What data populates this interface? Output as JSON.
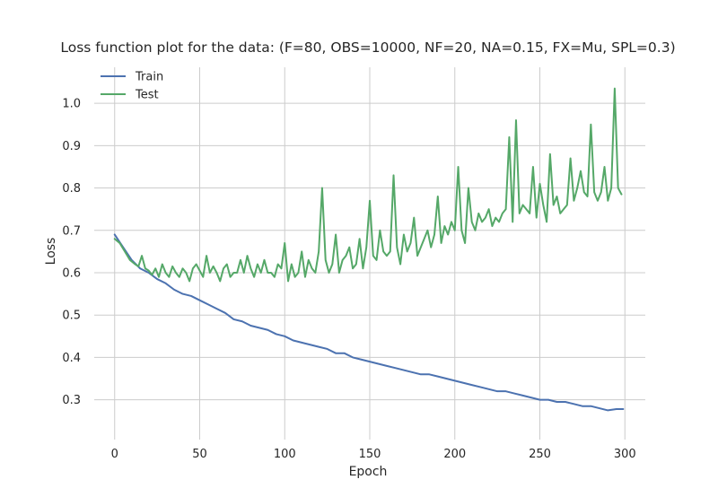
{
  "chart_data": {
    "type": "line",
    "title": "Loss function plot for the data: (F=80, OBS=10000, NF=20, NA=0.15, FX=Mu, SPL=0.3)",
    "xlabel": "Epoch",
    "ylabel": "Loss",
    "xlim": [
      -12,
      312
    ],
    "ylim": [
      0.206,
      1.085
    ],
    "xticks": [
      0,
      50,
      100,
      150,
      200,
      250,
      300
    ],
    "yticks": [
      0.3,
      0.4,
      0.5,
      0.6,
      0.7,
      0.8,
      0.9,
      1.0
    ],
    "xtick_labels": [
      "0",
      "50",
      "100",
      "150",
      "200",
      "250",
      "300"
    ],
    "ytick_labels": [
      "0.3",
      "0.4",
      "0.5",
      "0.6",
      "0.7",
      "0.8",
      "0.9",
      "1.0"
    ],
    "grid": true,
    "legend_position": "upper-left",
    "series": [
      {
        "name": "Train",
        "color": "#4c72b0",
        "x": [
          0,
          5,
          10,
          15,
          20,
          25,
          30,
          35,
          40,
          45,
          50,
          55,
          60,
          65,
          70,
          75,
          80,
          85,
          90,
          95,
          100,
          105,
          110,
          115,
          120,
          125,
          130,
          135,
          140,
          145,
          150,
          155,
          160,
          165,
          170,
          175,
          180,
          185,
          190,
          195,
          200,
          205,
          210,
          215,
          220,
          225,
          230,
          235,
          240,
          245,
          250,
          255,
          260,
          265,
          270,
          275,
          280,
          285,
          290,
          295,
          299
        ],
        "values": [
          0.69,
          0.66,
          0.63,
          0.61,
          0.6,
          0.585,
          0.575,
          0.56,
          0.55,
          0.545,
          0.535,
          0.525,
          0.515,
          0.505,
          0.49,
          0.485,
          0.475,
          0.47,
          0.465,
          0.455,
          0.45,
          0.44,
          0.435,
          0.43,
          0.425,
          0.42,
          0.41,
          0.41,
          0.4,
          0.395,
          0.39,
          0.385,
          0.38,
          0.375,
          0.37,
          0.365,
          0.36,
          0.36,
          0.355,
          0.35,
          0.345,
          0.34,
          0.335,
          0.33,
          0.325,
          0.32,
          0.32,
          0.315,
          0.31,
          0.305,
          0.3,
          0.3,
          0.295,
          0.295,
          0.29,
          0.285,
          0.285,
          0.28,
          0.275,
          0.278,
          0.278
        ]
      },
      {
        "name": "Test",
        "color": "#55a868",
        "x": [
          0,
          3,
          6,
          9,
          12,
          14,
          16,
          18,
          20,
          22,
          24,
          26,
          28,
          30,
          32,
          34,
          36,
          38,
          40,
          42,
          44,
          46,
          48,
          50,
          52,
          54,
          56,
          58,
          60,
          62,
          64,
          66,
          68,
          70,
          72,
          74,
          76,
          78,
          80,
          82,
          84,
          86,
          88,
          90,
          92,
          94,
          96,
          98,
          100,
          102,
          104,
          106,
          108,
          110,
          112,
          114,
          116,
          118,
          120,
          122,
          124,
          126,
          128,
          130,
          132,
          134,
          136,
          138,
          140,
          142,
          144,
          146,
          148,
          150,
          152,
          154,
          156,
          158,
          160,
          162,
          164,
          166,
          168,
          170,
          172,
          174,
          176,
          178,
          180,
          182,
          184,
          186,
          188,
          190,
          192,
          194,
          196,
          198,
          200,
          202,
          204,
          206,
          208,
          210,
          212,
          214,
          216,
          218,
          220,
          222,
          224,
          226,
          228,
          230,
          232,
          234,
          236,
          238,
          240,
          242,
          244,
          246,
          248,
          250,
          252,
          254,
          256,
          258,
          260,
          262,
          264,
          266,
          268,
          270,
          272,
          274,
          276,
          278,
          280,
          282,
          284,
          286,
          288,
          290,
          292,
          294,
          296,
          298
        ],
        "values": [
          0.68,
          0.67,
          0.65,
          0.63,
          0.62,
          0.615,
          0.64,
          0.61,
          0.605,
          0.595,
          0.61,
          0.59,
          0.62,
          0.6,
          0.59,
          0.615,
          0.6,
          0.59,
          0.61,
          0.6,
          0.58,
          0.61,
          0.62,
          0.605,
          0.59,
          0.64,
          0.6,
          0.615,
          0.6,
          0.58,
          0.61,
          0.62,
          0.59,
          0.6,
          0.6,
          0.63,
          0.6,
          0.64,
          0.61,
          0.59,
          0.62,
          0.6,
          0.63,
          0.6,
          0.6,
          0.59,
          0.62,
          0.61,
          0.67,
          0.58,
          0.62,
          0.59,
          0.6,
          0.65,
          0.59,
          0.63,
          0.61,
          0.6,
          0.65,
          0.8,
          0.63,
          0.6,
          0.62,
          0.69,
          0.6,
          0.63,
          0.64,
          0.66,
          0.61,
          0.62,
          0.68,
          0.61,
          0.66,
          0.77,
          0.64,
          0.63,
          0.7,
          0.65,
          0.64,
          0.65,
          0.83,
          0.66,
          0.62,
          0.69,
          0.65,
          0.67,
          0.73,
          0.64,
          0.66,
          0.68,
          0.7,
          0.66,
          0.69,
          0.78,
          0.67,
          0.71,
          0.69,
          0.72,
          0.7,
          0.85,
          0.7,
          0.67,
          0.8,
          0.72,
          0.7,
          0.74,
          0.72,
          0.73,
          0.75,
          0.71,
          0.73,
          0.72,
          0.74,
          0.75,
          0.92,
          0.72,
          0.96,
          0.74,
          0.76,
          0.75,
          0.74,
          0.85,
          0.73,
          0.81,
          0.76,
          0.72,
          0.88,
          0.76,
          0.78,
          0.74,
          0.75,
          0.76,
          0.87,
          0.77,
          0.8,
          0.84,
          0.79,
          0.78,
          0.95,
          0.79,
          0.77,
          0.79,
          0.85,
          0.77,
          0.8,
          1.035,
          0.8,
          0.785
        ]
      }
    ]
  }
}
